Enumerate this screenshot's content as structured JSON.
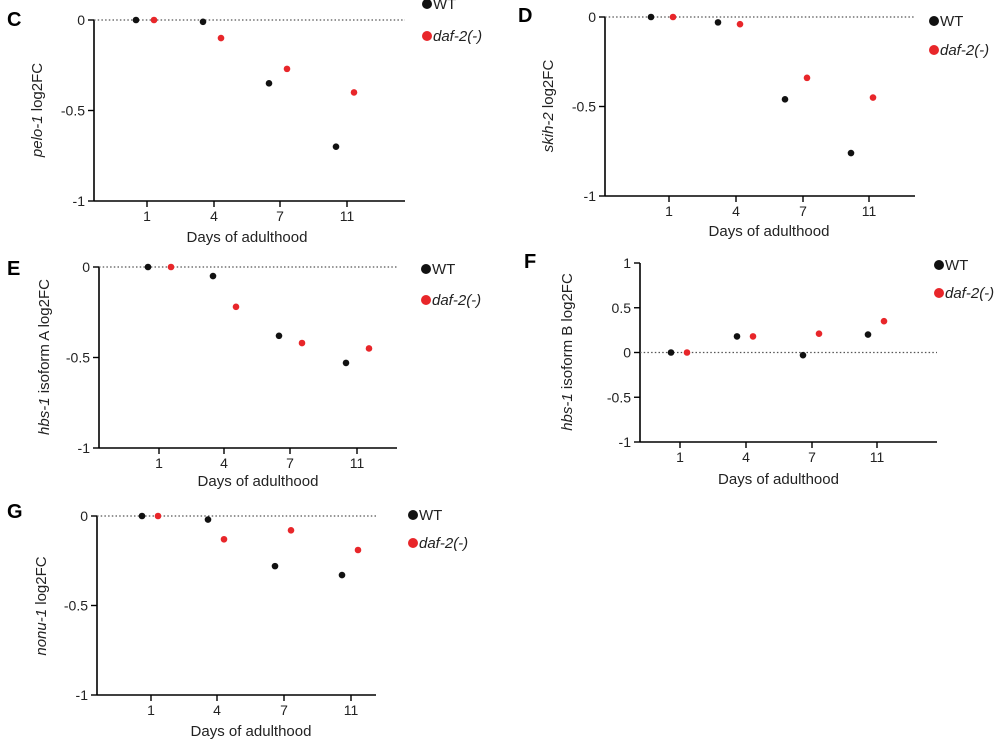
{
  "colors": {
    "wt": "#111111",
    "daf2": "#e8262a",
    "axis": "#000000",
    "zero_line": "#555555"
  },
  "chart_data": [
    {
      "panel": "C",
      "type": "scatter",
      "gene": "pelo-1",
      "ylabel_suffix": " log2FC",
      "xlabel": "Days of adulthood",
      "categories": [
        "1",
        "4",
        "7",
        "11"
      ],
      "ylim": [
        -1,
        0
      ],
      "yticks": [
        0,
        -0.5,
        -1
      ],
      "ytick_labels": [
        "0",
        "-0.5",
        "-1"
      ],
      "series": [
        {
          "name": "WT",
          "values": [
            0,
            -0.01,
            -0.35,
            -0.7
          ]
        },
        {
          "name": "daf-2(-)",
          "values": [
            0,
            -0.1,
            -0.27,
            -0.4
          ]
        }
      ]
    },
    {
      "panel": "D",
      "type": "scatter",
      "gene": "skih-2",
      "ylabel_suffix": " log2FC",
      "xlabel": "Days of adulthood",
      "categories": [
        "1",
        "4",
        "7",
        "11"
      ],
      "ylim": [
        -1,
        0
      ],
      "yticks": [
        0,
        -0.5,
        -1
      ],
      "ytick_labels": [
        "0",
        "-0.5",
        "-1"
      ],
      "series": [
        {
          "name": "WT",
          "values": [
            0,
            -0.03,
            -0.46,
            -0.76
          ]
        },
        {
          "name": "daf-2(-)",
          "values": [
            0,
            -0.04,
            -0.34,
            -0.45
          ]
        }
      ]
    },
    {
      "panel": "E",
      "type": "scatter",
      "gene": "hbs-1",
      "ylabel_suffix": " isoform A log2FC",
      "xlabel": "Days of adulthood",
      "categories": [
        "1",
        "4",
        "7",
        "11"
      ],
      "ylim": [
        -1,
        0
      ],
      "yticks": [
        0,
        -0.5,
        -1
      ],
      "ytick_labels": [
        "0",
        "-0.5",
        "-1"
      ],
      "series": [
        {
          "name": "WT",
          "values": [
            0,
            -0.05,
            -0.38,
            -0.53
          ]
        },
        {
          "name": "daf-2(-)",
          "values": [
            0,
            -0.22,
            -0.42,
            -0.45
          ]
        }
      ]
    },
    {
      "panel": "F",
      "type": "scatter",
      "gene": "hbs-1",
      "ylabel_suffix": " isoform B log2FC",
      "xlabel": "Days of adulthood",
      "categories": [
        "1",
        "4",
        "7",
        "11"
      ],
      "ylim": [
        -1,
        1
      ],
      "yticks": [
        1,
        0.5,
        0,
        -0.5,
        -1
      ],
      "ytick_labels": [
        "1",
        "0.5",
        "0",
        "-0.5",
        "-1"
      ],
      "series": [
        {
          "name": "WT",
          "values": [
            0,
            0.18,
            -0.03,
            0.2
          ]
        },
        {
          "name": "daf-2(-)",
          "values": [
            0,
            0.18,
            0.21,
            0.35
          ]
        }
      ]
    },
    {
      "panel": "G",
      "type": "scatter",
      "gene": "nonu-1",
      "ylabel_suffix": " log2FC",
      "xlabel": "Days of adulthood",
      "categories": [
        "1",
        "4",
        "7",
        "11"
      ],
      "ylim": [
        -1,
        0
      ],
      "yticks": [
        0,
        -0.5,
        -1
      ],
      "ytick_labels": [
        "0",
        "-0.5",
        "-1"
      ],
      "series": [
        {
          "name": "WT",
          "values": [
            0,
            -0.02,
            -0.28,
            -0.33
          ]
        },
        {
          "name": "daf-2(-)",
          "values": [
            0,
            -0.13,
            -0.08,
            -0.19
          ]
        }
      ]
    }
  ]
}
